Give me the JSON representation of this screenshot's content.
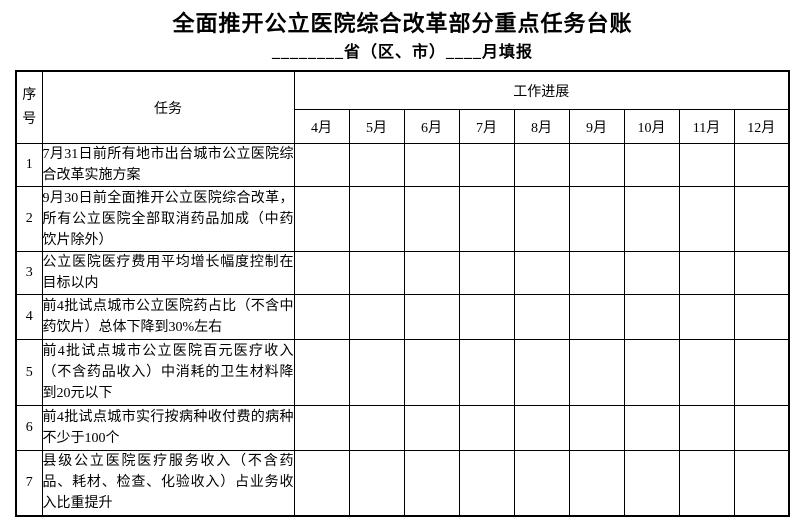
{
  "page": {
    "title": "全面推开公立医院综合改革部分重点任务台账",
    "subtitle": "________省（区、市）____月填报"
  },
  "table": {
    "headers": {
      "index": "序号",
      "task": "任务",
      "progress": "工作进展",
      "months": [
        "4月",
        "5月",
        "6月",
        "7月",
        "8月",
        "9月",
        "10月",
        "11月",
        "12月"
      ]
    },
    "rows": [
      {
        "index": "1",
        "task": "7月31日前所有地市出台城市公立医院综合改革实施方案"
      },
      {
        "index": "2",
        "task": "9月30日前全面推开公立医院综合改革，所有公立医院全部取消药品加成（中药饮片除外）"
      },
      {
        "index": "3",
        "task": "公立医院医疗费用平均增长幅度控制在目标以内"
      },
      {
        "index": "4",
        "task": "前4批试点城市公立医院药占比（不含中药饮片）总体下降到30%左右"
      },
      {
        "index": "5",
        "task": "前4批试点城市公立医院百元医疗收入（不含药品收入）中消耗的卫生材料降到20元以下"
      },
      {
        "index": "6",
        "task": "前4批试点城市实行按病种收付费的病种不少于100个"
      },
      {
        "index": "7",
        "task": "县级公立医院医疗服务收入（不含药品、耗材、检查、化验收入）占业务收入比重提升"
      }
    ]
  }
}
